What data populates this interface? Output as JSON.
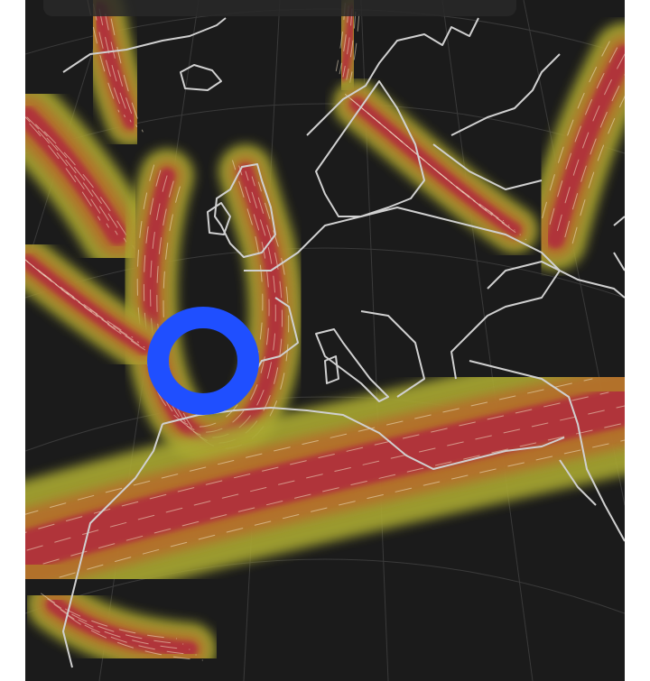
{
  "map": {
    "colors": {
      "background": "#1b1b1b",
      "jet_outer": "#a9a832",
      "jet_mid": "#b8682c",
      "jet_core": "#b02a3c",
      "streamline": "#f3e2c6",
      "coastline": "#d0d0d0",
      "graticule": "#3a3a3a",
      "annotation_circle": "#1f4fff"
    },
    "annotation": {
      "shape": "hand-drawn-circle",
      "color": "#1f4fff"
    }
  }
}
